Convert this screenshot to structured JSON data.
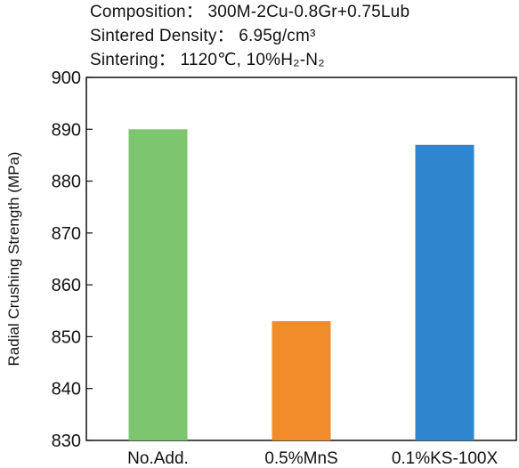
{
  "header": {
    "composition": "Composition： 300M-2Cu-0.8Gr+0.75Lub",
    "density": "Sintered Density： 6.95g/cm³",
    "sintering": "Sintering： 1120℃, 10%H₂-N₂"
  },
  "chart_data": {
    "type": "bar",
    "categories": [
      "No.Add.",
      "0.5%MnS",
      "0.1%KS-100X"
    ],
    "values": [
      890,
      853,
      887
    ],
    "colors": [
      "#7dc56f",
      "#f08c2a",
      "#2f86cf"
    ],
    "ylabel": "Radial Crushing Strength (MPa)",
    "ylim": [
      830,
      900
    ],
    "yticks": [
      830,
      840,
      850,
      860,
      870,
      880,
      890,
      900
    ],
    "grid": false,
    "legend": "none"
  }
}
